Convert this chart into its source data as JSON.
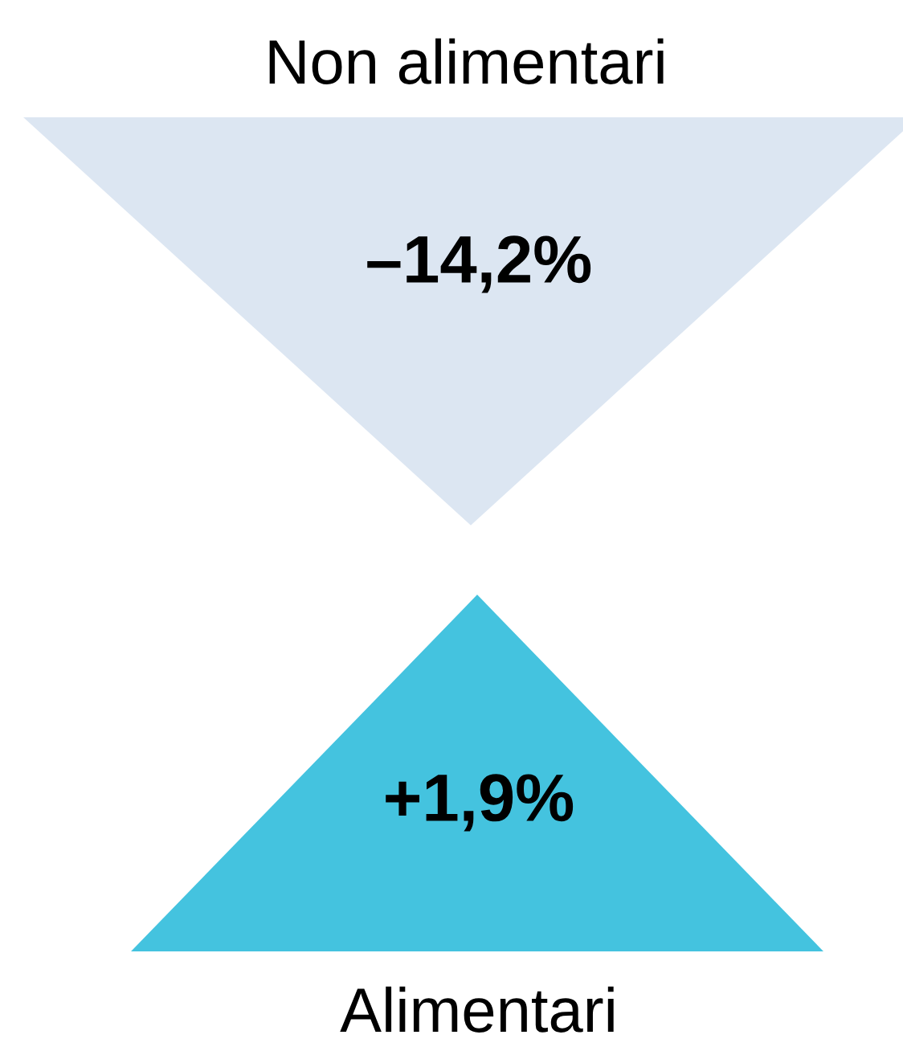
{
  "chart_data": {
    "type": "other",
    "categories": [
      "Non alimentari",
      "Alimentari"
    ],
    "values": [
      -14.2,
      1.9
    ],
    "value_labels": [
      "–14,2%",
      "+1,9%"
    ],
    "colors": [
      "#dce6f2",
      "#44c3df"
    ]
  }
}
